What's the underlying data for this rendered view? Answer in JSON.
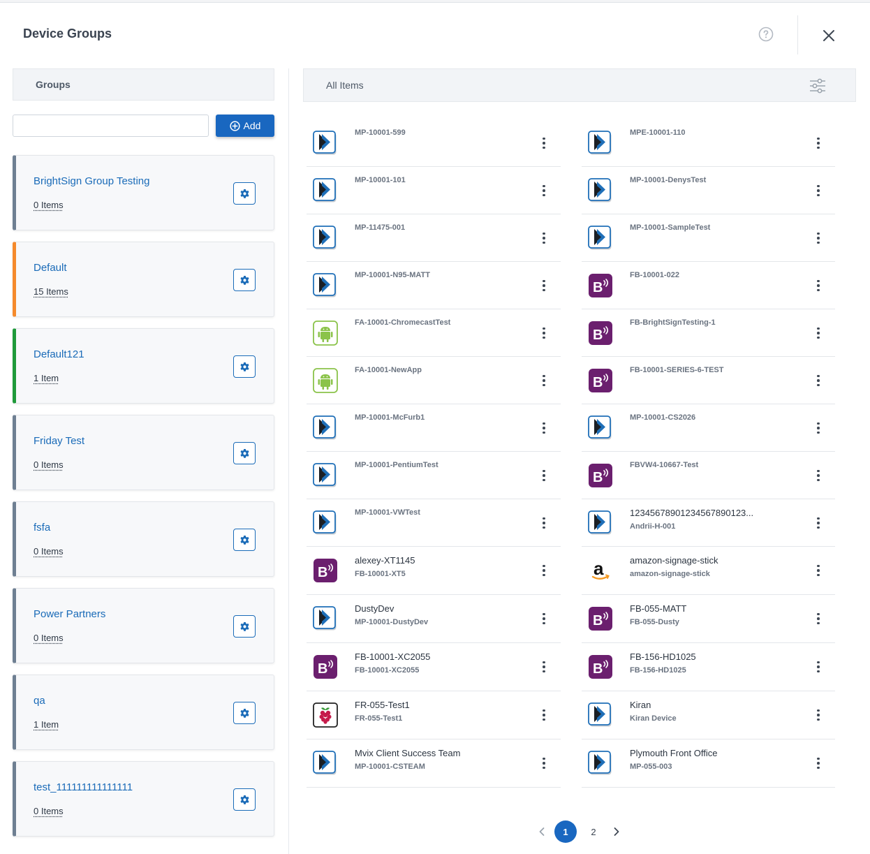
{
  "header": {
    "title": "Device Groups"
  },
  "groups_panel": {
    "header": "Groups",
    "search": {
      "value": "",
      "placeholder": ""
    },
    "add_label": "Add",
    "groups": [
      {
        "name": "BrightSign Group Testing",
        "count": "0 Items",
        "accent": "#6e7f92"
      },
      {
        "name": "Default",
        "count": "15 Items",
        "accent": "#f58a2c"
      },
      {
        "name": "Default121",
        "count": "1 Item",
        "accent": "#1f9a3a"
      },
      {
        "name": "Friday Test",
        "count": "0 Items",
        "accent": "#6e7f92"
      },
      {
        "name": "fsfa",
        "count": "0 Items",
        "accent": "#6e7f92"
      },
      {
        "name": "Power Partners",
        "count": "0 Items",
        "accent": "#6e7f92"
      },
      {
        "name": "qa",
        "count": "1 Item",
        "accent": "#6e7f92"
      },
      {
        "name": "test_111111111111111",
        "count": "0 Items",
        "accent": "#6e7f92"
      }
    ]
  },
  "items_panel": {
    "header": "All Items",
    "items": [
      {
        "name": "MP-10001-599",
        "sub": "",
        "icon": "mvix-player-icon"
      },
      {
        "name": "MPE-10001-110",
        "sub": "",
        "icon": "mvix-player-icon"
      },
      {
        "name": "MP-10001-101",
        "sub": "",
        "icon": "mvix-player-icon"
      },
      {
        "name": "MP-10001-DenysTest",
        "sub": "",
        "icon": "mvix-player-icon"
      },
      {
        "name": "MP-11475-001",
        "sub": "",
        "icon": "mvix-player-icon"
      },
      {
        "name": "MP-10001-SampleTest",
        "sub": "",
        "icon": "mvix-player-icon"
      },
      {
        "name": "MP-10001-N95-MATT",
        "sub": "",
        "icon": "mvix-player-icon"
      },
      {
        "name": "FB-10001-022",
        "sub": "",
        "icon": "brightsign-icon"
      },
      {
        "name": "FA-10001-ChromecastTest",
        "sub": "",
        "icon": "android-icon"
      },
      {
        "name": "FB-BrightSignTesting-1",
        "sub": "",
        "icon": "brightsign-icon"
      },
      {
        "name": "FA-10001-NewApp",
        "sub": "",
        "icon": "android-icon"
      },
      {
        "name": "FB-10001-SERIES-6-TEST",
        "sub": "",
        "icon": "brightsign-icon"
      },
      {
        "name": "MP-10001-McFurb1",
        "sub": "",
        "icon": "mvix-player-icon"
      },
      {
        "name": "MP-10001-CS2026",
        "sub": "",
        "icon": "mvix-player-icon"
      },
      {
        "name": "MP-10001-PentiumTest",
        "sub": "",
        "icon": "mvix-player-icon"
      },
      {
        "name": "FBVW4-10667-Test",
        "sub": "",
        "icon": "brightsign-icon"
      },
      {
        "name": "MP-10001-VWTest",
        "sub": "",
        "icon": "mvix-player-icon"
      },
      {
        "name": "12345678901234567890123...",
        "sub": "Andrii-H-001",
        "icon": "mvix-player-icon"
      },
      {
        "name": "alexey-XT1145",
        "sub": "FB-10001-XT5",
        "icon": "brightsign-icon"
      },
      {
        "name": "amazon-signage-stick",
        "sub": "amazon-signage-stick",
        "icon": "amazon-icon"
      },
      {
        "name": "DustyDev",
        "sub": "MP-10001-DustyDev",
        "icon": "mvix-player-icon"
      },
      {
        "name": "FB-055-MATT",
        "sub": "FB-055-Dusty",
        "icon": "brightsign-icon"
      },
      {
        "name": "FB-10001-XC2055",
        "sub": "FB-10001-XC2055",
        "icon": "brightsign-icon"
      },
      {
        "name": "FB-156-HD1025",
        "sub": "FB-156-HD1025",
        "icon": "brightsign-icon"
      },
      {
        "name": "FR-055-Test1",
        "sub": "FR-055-Test1",
        "icon": "raspberry-pi-icon"
      },
      {
        "name": "Kiran",
        "sub": "Kiran Device",
        "icon": "mvix-player-icon"
      },
      {
        "name": "Mvix Client Success Team",
        "sub": "MP-10001-CSTEAM",
        "icon": "mvix-player-icon"
      },
      {
        "name": "Plymouth Front Office",
        "sub": "MP-055-003",
        "icon": "mvix-player-icon"
      }
    ]
  },
  "pagination": {
    "current": "1",
    "next_page": "2"
  },
  "colors": {
    "primary": "#1967c0",
    "link": "#1a6bb8",
    "brightsign": "#6b1f6e",
    "android": "#8bc34a"
  }
}
